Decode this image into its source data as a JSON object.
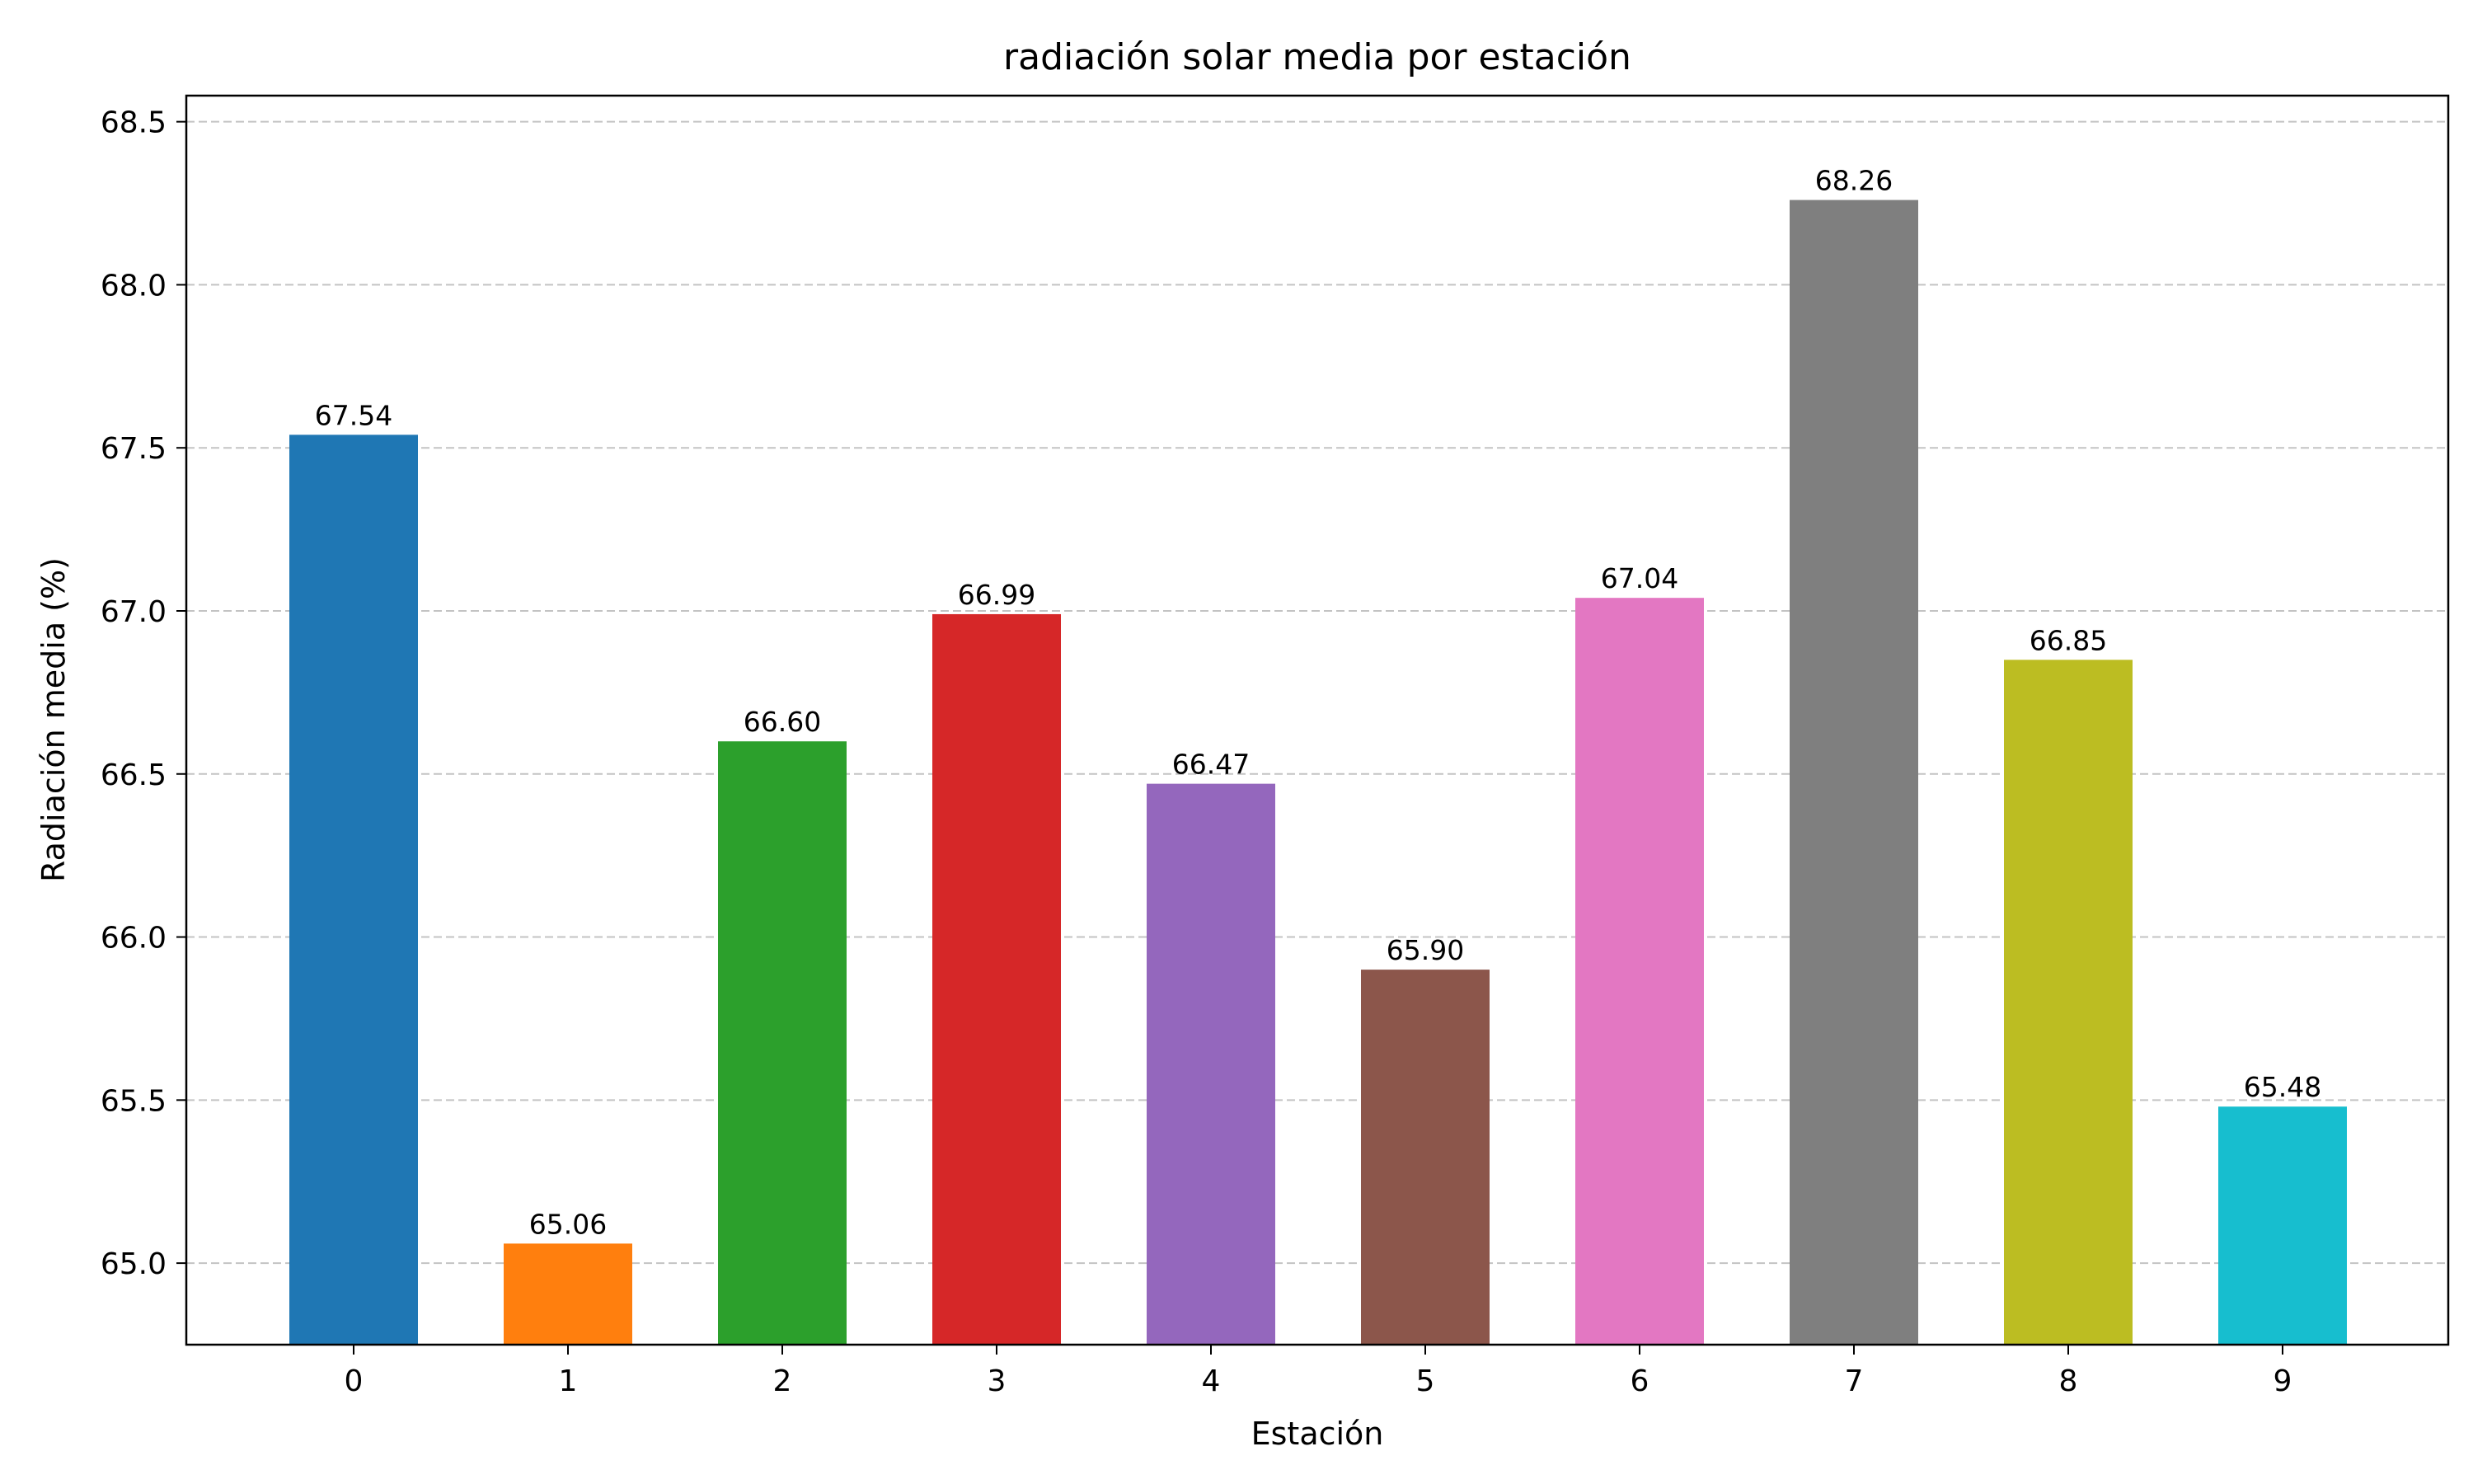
{
  "chart_data": {
    "type": "bar",
    "title": "radiación solar media por estación",
    "xlabel": "Estación",
    "ylabel": "Radiación media (%)",
    "categories": [
      "0",
      "1",
      "2",
      "3",
      "4",
      "5",
      "6",
      "7",
      "8",
      "9"
    ],
    "values": [
      67.54,
      65.06,
      66.6,
      66.99,
      66.47,
      65.9,
      67.04,
      68.26,
      66.85,
      65.48
    ],
    "value_labels": [
      "67.54",
      "65.06",
      "66.60",
      "66.99",
      "66.47",
      "65.90",
      "67.04",
      "68.26",
      "66.85",
      "65.48"
    ],
    "colors": [
      "#1f77b4",
      "#ff7f0e",
      "#2ca02c",
      "#d62728",
      "#9467bd",
      "#8c564b",
      "#e377c2",
      "#7f7f7f",
      "#bcbd22",
      "#17becf"
    ],
    "ylim": [
      64.75,
      68.58
    ],
    "yticks": [
      65.0,
      65.5,
      66.0,
      66.5,
      67.0,
      67.5,
      68.0,
      68.5
    ],
    "ytick_labels": [
      "65.0",
      "65.5",
      "66.0",
      "66.5",
      "67.0",
      "67.5",
      "68.0",
      "68.5"
    ],
    "grid": "y-dashed",
    "legend": "none"
  }
}
